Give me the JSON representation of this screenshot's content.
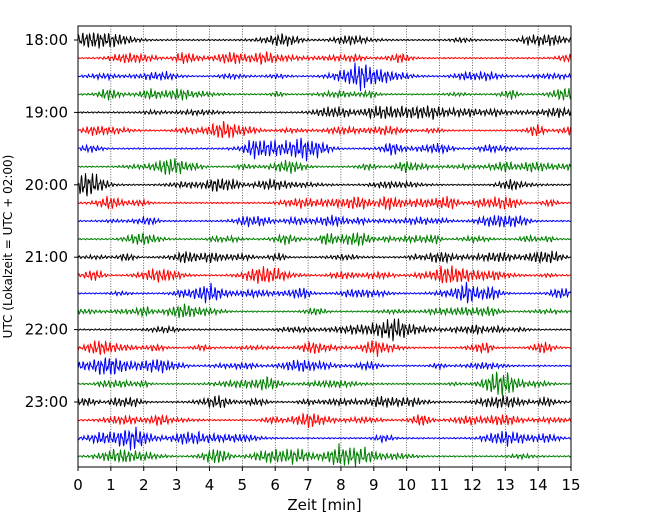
{
  "chart_data": {
    "type": "line",
    "title": "",
    "xlabel": "Zeit  [min]",
    "ylabel": "UTC (Lokalzeit = UTC + 02:00)",
    "xlim": [
      0,
      15
    ],
    "x_ticks": [
      0,
      1,
      2,
      3,
      4,
      5,
      6,
      7,
      8,
      9,
      10,
      11,
      12,
      13,
      14,
      15
    ],
    "y_tick_labels": [
      "18:00",
      "19:00",
      "20:00",
      "21:00",
      "22:00",
      "23:00"
    ],
    "grid": "vertical dotted",
    "trace_interval_min": 15,
    "trace_colors": [
      "#000000",
      "#ff0000",
      "#0000ff",
      "#008000"
    ],
    "traces": [
      {
        "start": "18:00"
      },
      {
        "start": "18:15"
      },
      {
        "start": "18:30"
      },
      {
        "start": "18:45"
      },
      {
        "start": "19:00"
      },
      {
        "start": "19:15"
      },
      {
        "start": "19:30"
      },
      {
        "start": "19:45"
      },
      {
        "start": "20:00"
      },
      {
        "start": "20:15"
      },
      {
        "start": "20:30"
      },
      {
        "start": "20:45"
      },
      {
        "start": "21:00"
      },
      {
        "start": "21:15"
      },
      {
        "start": "21:30"
      },
      {
        "start": "21:45"
      },
      {
        "start": "22:00"
      },
      {
        "start": "22:15"
      },
      {
        "start": "22:30"
      },
      {
        "start": "22:45"
      },
      {
        "start": "23:00"
      },
      {
        "start": "23:15"
      },
      {
        "start": "23:30"
      },
      {
        "start": "23:45"
      }
    ]
  }
}
